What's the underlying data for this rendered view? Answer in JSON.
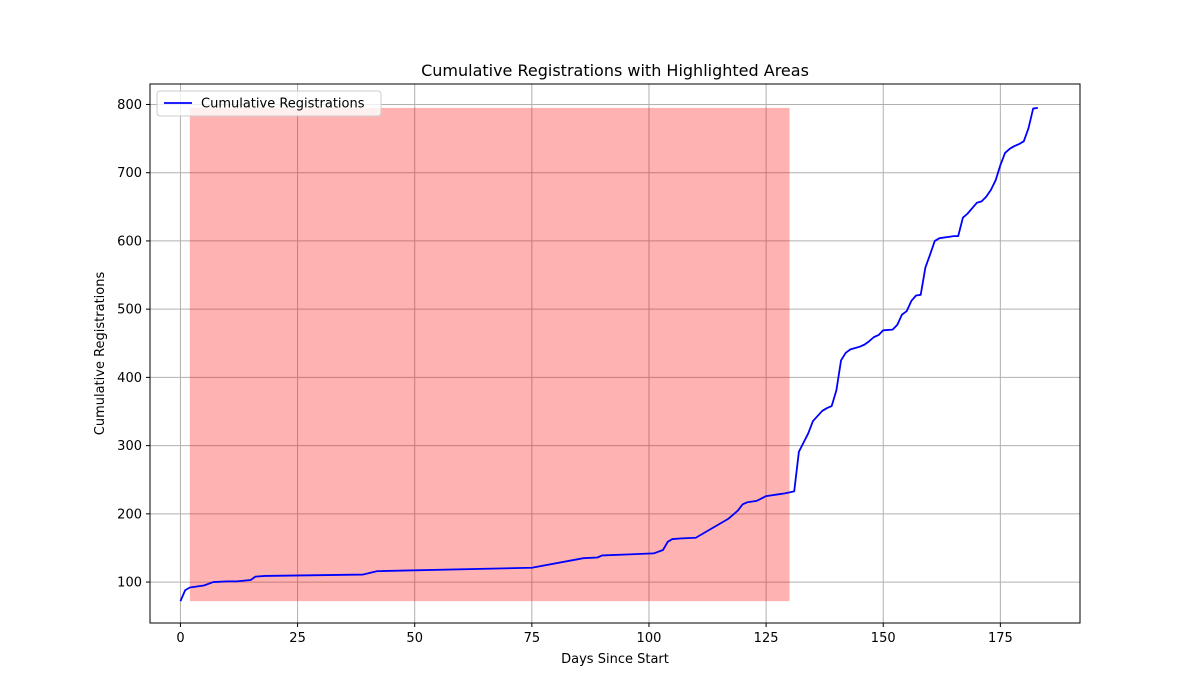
{
  "chart_data": {
    "type": "line",
    "title": "Cumulative Registrations with Highlighted Areas",
    "xlabel": "Days Since Start",
    "ylabel": "Cumulative Registrations",
    "xlim": [
      -6.5,
      192
    ],
    "ylim": [
      40,
      830
    ],
    "xticks": [
      0,
      25,
      50,
      75,
      100,
      125,
      150,
      175
    ],
    "yticks": [
      100,
      200,
      300,
      400,
      500,
      600,
      700,
      800
    ],
    "grid": true,
    "legend": {
      "location": "upper-left",
      "entries": [
        "Cumulative Registrations"
      ]
    },
    "series": [
      {
        "name": "Cumulative Registrations",
        "color": "#0000ff",
        "x": [
          0,
          1,
          2,
          5,
          7,
          10,
          12,
          15,
          16,
          18,
          39,
          42,
          75,
          86,
          89,
          90,
          101,
          103,
          104,
          105,
          107,
          110,
          117,
          118,
          119,
          120,
          121,
          123,
          125,
          128,
          129,
          131,
          132,
          134,
          135,
          137,
          138,
          139,
          140,
          141,
          142,
          143,
          145,
          146,
          147,
          148,
          149,
          150,
          152,
          153,
          154,
          155,
          156,
          157,
          158,
          159,
          160,
          161,
          162,
          164,
          165,
          166,
          167,
          168,
          170,
          171,
          172,
          173,
          174,
          175,
          176,
          177,
          178,
          179,
          180,
          181,
          182,
          183
        ],
        "values": [
          72,
          88,
          92,
          95,
          100,
          101,
          101,
          103,
          108,
          109,
          111,
          116,
          121,
          135,
          136,
          139,
          142,
          147,
          159,
          163,
          164,
          165,
          193,
          199,
          205,
          214,
          217,
          219,
          226,
          229,
          230,
          233,
          291,
          318,
          336,
          351,
          355,
          358,
          381,
          425,
          436,
          441,
          445,
          448,
          453,
          459,
          462,
          469,
          470,
          477,
          492,
          497,
          512,
          520,
          521,
          561,
          580,
          600,
          604,
          606,
          607,
          607,
          634,
          640,
          656,
          658,
          665,
          675,
          689,
          711,
          729,
          735,
          739,
          742,
          746,
          765,
          794,
          795
        ]
      }
    ],
    "highlighted_areas": [
      {
        "x_start": 2,
        "x_end": 130,
        "y_start": 72,
        "y_end": 795,
        "color": "#ff0000",
        "alpha": 0.3
      }
    ]
  }
}
